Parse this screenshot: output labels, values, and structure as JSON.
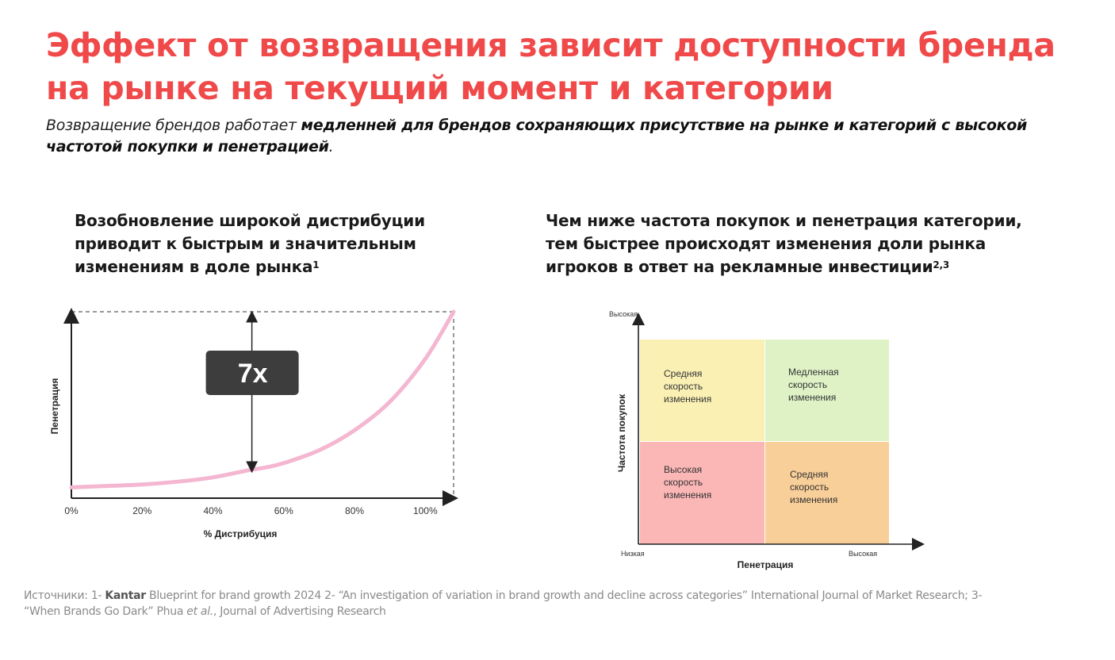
{
  "title": "Эффект от возвращения зависит доступности бренда на рынке на текущий момент и категории",
  "subtitle": {
    "part1": "Возвращение брендов  работает ",
    "bold": "медленней для брендов сохраняющих присутствие на рынке и категорий с высокой частотой покупки и пенетрацией",
    "part2": "."
  },
  "left_heading": {
    "text": "Возобновление широкой дистрибуции приводит к быстрым и значительным изменениям в доле рынка",
    "sup": "1"
  },
  "right_heading": {
    "text": "Чем ниже частота покупок и пенетрация категории, тем быстрее происходят изменения доли рынка игроков в ответ на рекламные инвестиции",
    "sup": "2,3"
  },
  "sources": {
    "prefix": "Источники: 1- ",
    "kantar": "Kantar",
    "rest1": " Blueprint for brand growth 2024 2- “An investigation of variation in brand growth and decline across categories” International Journal of Market Research; 3- “When Brands Go Dark” Phua ",
    "etal": "et al.",
    "rest2": ", Journal of Advertising Research"
  },
  "colors": {
    "title": "#f0494a",
    "curve": "#f4b6d0",
    "badge_bg": "#3d3d3d",
    "q_top_left": "#faf0b4",
    "q_top_right": "#def2c6",
    "q_bottom_left": "#fbb6b6",
    "q_bottom_right": "#f9cf99"
  },
  "chart_data": [
    {
      "type": "line",
      "xlabel": "% Дистрибуция",
      "ylabel": "Пенетрация",
      "x_ticks": [
        "0%",
        "20%",
        "40%",
        "60%",
        "80%",
        "100%"
      ],
      "x": [
        0,
        10,
        20,
        30,
        40,
        50,
        55,
        60,
        70,
        80,
        90,
        100,
        108
      ],
      "values": [
        2,
        3,
        4,
        6,
        9,
        14,
        16,
        19,
        28,
        42,
        62,
        92,
        125
      ],
      "xlim": [
        0,
        108
      ],
      "ylim": [
        0,
        125
      ],
      "annotation": {
        "label": "7x",
        "x": 51,
        "from_y": 14,
        "to_y": 125
      },
      "grid": false
    },
    {
      "type": "table",
      "xlabel": "Пенетрация",
      "ylabel": "Частота покупок",
      "x_low": "Низкая",
      "x_high": "Высокая",
      "y_high": "Высокая",
      "cells": [
        {
          "name": "top-left",
          "text": "Средняя скорость изменения"
        },
        {
          "name": "top-right",
          "text": "Медленная скорость изменения"
        },
        {
          "name": "bottom-left",
          "text": "Высокая скорость изменения"
        },
        {
          "name": "bottom-right",
          "text": "Средняя скорость изменения"
        }
      ]
    }
  ]
}
